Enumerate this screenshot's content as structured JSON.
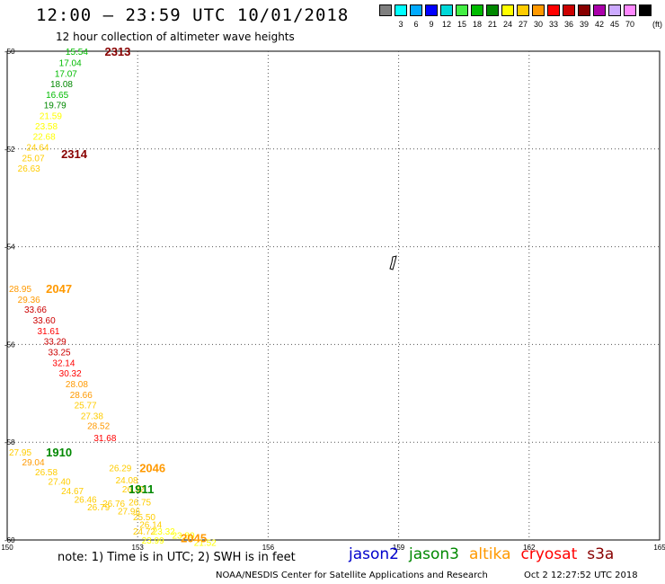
{
  "header": {
    "title": "12:00 – 23:59 UTC 10/01/2018",
    "subtitle": "12 hour collection of altimeter wave heights"
  },
  "color_scale": {
    "unit": "(ft)",
    "swatches": [
      {
        "color": "#7f7f7f",
        "label": ""
      },
      {
        "color": "#00ffff",
        "label": "3"
      },
      {
        "color": "#00aaff",
        "label": "6"
      },
      {
        "color": "#0000ff",
        "label": "9"
      },
      {
        "color": "#00d8d8",
        "label": "12"
      },
      {
        "color": "#44ee44",
        "label": "15"
      },
      {
        "color": "#00bb00",
        "label": "18"
      },
      {
        "color": "#008800",
        "label": "21"
      },
      {
        "color": "#ffff00",
        "label": "24"
      },
      {
        "color": "#ffcc00",
        "label": "27"
      },
      {
        "color": "#ff9900",
        "label": "30"
      },
      {
        "color": "#ff0000",
        "label": "33"
      },
      {
        "color": "#cc0000",
        "label": "36"
      },
      {
        "color": "#880000",
        "label": "39"
      },
      {
        "color": "#aa00aa",
        "label": "42"
      },
      {
        "color": "#ccaaff",
        "label": "45"
      },
      {
        "color": "#ff88ff",
        "label": "70"
      },
      {
        "color": "#000000",
        "label": ""
      }
    ]
  },
  "axes": {
    "lon_labels": [
      "150",
      "153",
      "156",
      "159",
      "162",
      "165"
    ],
    "lat_labels": [
      "-50",
      "-52",
      "-54",
      "-56",
      "-58",
      "-60"
    ],
    "lon_range": [
      150,
      165
    ],
    "lat_range": [
      -50,
      -60
    ]
  },
  "pass_labels": [
    {
      "text": "2313",
      "color": "#880000",
      "lon": 152.2,
      "lat": -50.0
    },
    {
      "text": "2314",
      "color": "#880000",
      "lon": 151.2,
      "lat": -52.1
    },
    {
      "text": "2047",
      "color": "#ff9900",
      "lon": 150.85,
      "lat": -54.85
    },
    {
      "text": "1910",
      "color": "#008800",
      "lon": 150.85,
      "lat": -58.2
    },
    {
      "text": "2046",
      "color": "#ff9900",
      "lon": 153.0,
      "lat": -58.52
    },
    {
      "text": "1911",
      "color": "#008800",
      "lon": 152.75,
      "lat": -58.95
    },
    {
      "text": "2045",
      "color": "#ff9900",
      "lon": 153.95,
      "lat": -59.95
    }
  ],
  "observations": [
    {
      "value": "15.54",
      "color": "#00bb00",
      "lon": 151.3,
      "lat": -50.0
    },
    {
      "value": "17.04",
      "color": "#00bb00",
      "lon": 151.15,
      "lat": -50.23
    },
    {
      "value": "17.07",
      "color": "#00bb00",
      "lon": 151.05,
      "lat": -50.45
    },
    {
      "value": "18.08",
      "color": "#008800",
      "lon": 150.95,
      "lat": -50.66
    },
    {
      "value": "16.65",
      "color": "#00bb00",
      "lon": 150.85,
      "lat": -50.88
    },
    {
      "value": "19.79",
      "color": "#008800",
      "lon": 150.8,
      "lat": -51.09
    },
    {
      "value": "21.59",
      "color": "#ffff00",
      "lon": 150.7,
      "lat": -51.31
    },
    {
      "value": "23.58",
      "color": "#ffff00",
      "lon": 150.6,
      "lat": -51.53
    },
    {
      "value": "22.68",
      "color": "#ffff00",
      "lon": 150.55,
      "lat": -51.74
    },
    {
      "value": "24.64",
      "color": "#ffcc00",
      "lon": 150.4,
      "lat": -51.96
    },
    {
      "value": "25.07",
      "color": "#ffcc00",
      "lon": 150.3,
      "lat": -52.18
    },
    {
      "value": "26.63",
      "color": "#ffcc00",
      "lon": 150.2,
      "lat": -52.39
    },
    {
      "value": "28.95",
      "color": "#ff9900",
      "lon": 150.0,
      "lat": -54.85
    },
    {
      "value": "29.36",
      "color": "#ff9900",
      "lon": 150.2,
      "lat": -55.07
    },
    {
      "value": "33.66",
      "color": "#cc0000",
      "lon": 150.35,
      "lat": -55.28
    },
    {
      "value": "33.60",
      "color": "#cc0000",
      "lon": 150.55,
      "lat": -55.5
    },
    {
      "value": "31.61",
      "color": "#ff0000",
      "lon": 150.65,
      "lat": -55.72
    },
    {
      "value": "33.29",
      "color": "#cc0000",
      "lon": 150.8,
      "lat": -55.93
    },
    {
      "value": "33.25",
      "color": "#cc0000",
      "lon": 150.9,
      "lat": -56.15
    },
    {
      "value": "32.14",
      "color": "#ff0000",
      "lon": 151.0,
      "lat": -56.37
    },
    {
      "value": "30.32",
      "color": "#ff0000",
      "lon": 151.15,
      "lat": -56.58
    },
    {
      "value": "28.08",
      "color": "#ff9900",
      "lon": 151.3,
      "lat": -56.8
    },
    {
      "value": "28.66",
      "color": "#ff9900",
      "lon": 151.4,
      "lat": -57.02
    },
    {
      "value": "25.77",
      "color": "#ffcc00",
      "lon": 151.5,
      "lat": -57.23
    },
    {
      "value": "27.38",
      "color": "#ffcc00",
      "lon": 151.65,
      "lat": -57.45
    },
    {
      "value": "28.52",
      "color": "#ff9900",
      "lon": 151.8,
      "lat": -57.66
    },
    {
      "value": "31.68",
      "color": "#ff0000",
      "lon": 151.95,
      "lat": -57.9
    },
    {
      "value": "27.95",
      "color": "#ffcc00",
      "lon": 150.0,
      "lat": -58.2
    },
    {
      "value": "29.04",
      "color": "#ff9900",
      "lon": 150.3,
      "lat": -58.4
    },
    {
      "value": "26.58",
      "color": "#ffcc00",
      "lon": 150.6,
      "lat": -58.6
    },
    {
      "value": "27.40",
      "color": "#ffcc00",
      "lon": 150.9,
      "lat": -58.8
    },
    {
      "value": "24.67",
      "color": "#ffcc00",
      "lon": 151.2,
      "lat": -58.99
    },
    {
      "value": "26.46",
      "color": "#ffcc00",
      "lon": 151.5,
      "lat": -59.16
    },
    {
      "value": "26.79",
      "color": "#ffcc00",
      "lon": 151.8,
      "lat": -59.32
    },
    {
      "value": "26.29",
      "color": "#ffcc00",
      "lon": 152.3,
      "lat": -58.52
    },
    {
      "value": "24.08",
      "color": "#ffcc00",
      "lon": 152.45,
      "lat": -58.77
    },
    {
      "value": "26.32",
      "color": "#ffcc00",
      "lon": 152.6,
      "lat": -58.95
    },
    {
      "value": "26.76",
      "color": "#ffcc00",
      "lon": 152.15,
      "lat": -59.25
    },
    {
      "value": "26.75",
      "color": "#ffcc00",
      "lon": 152.75,
      "lat": -59.22
    },
    {
      "value": "27.96",
      "color": "#ffcc00",
      "lon": 152.5,
      "lat": -59.4
    },
    {
      "value": "25.50",
      "color": "#ffcc00",
      "lon": 152.85,
      "lat": -59.52
    },
    {
      "value": "26.14",
      "color": "#ffcc00",
      "lon": 153.0,
      "lat": -59.68
    },
    {
      "value": "24.72",
      "color": "#ffcc00",
      "lon": 152.85,
      "lat": -59.82
    },
    {
      "value": "23.32",
      "color": "#ffff00",
      "lon": 153.3,
      "lat": -59.82
    },
    {
      "value": "23.80",
      "color": "#ffff00",
      "lon": 153.75,
      "lat": -59.9
    },
    {
      "value": "23.99",
      "color": "#ffff00",
      "lon": 153.05,
      "lat": -60.0
    },
    {
      "value": "21.52",
      "color": "#ffff00",
      "lon": 154.25,
      "lat": -60.05
    }
  ],
  "footer": {
    "note": "note:  1) Time is in UTC;  2) SWH is in feet",
    "satellites": [
      {
        "name": "jason2",
        "color": "#0000cc"
      },
      {
        "name": "jason3",
        "color": "#008800"
      },
      {
        "name": "altika",
        "color": "#ff9900"
      },
      {
        "name": "cryosat",
        "color": "#ff0000"
      },
      {
        "name": "s3a",
        "color": "#880000"
      }
    ],
    "credit": "NOAA/NESDIS Center for Satellite Applications and Research",
    "timestamp": "Oct  2 12:27:52 UTC 2018"
  }
}
